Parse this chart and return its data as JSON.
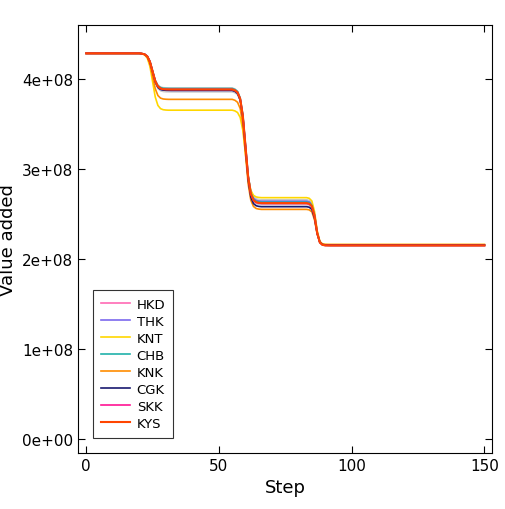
{
  "xlabel": "Step",
  "ylabel": "Value added",
  "xlim": [
    -3,
    153
  ],
  "ylim": [
    -15000000.0,
    460000000.0
  ],
  "yticks": [
    0,
    100000000.0,
    200000000.0,
    300000000.0,
    400000000.0
  ],
  "ytick_labels": [
    "0e+00",
    "1e+08",
    "2e+08",
    "3e+08",
    "4e+08"
  ],
  "xticks": [
    0,
    50,
    100,
    150
  ],
  "series": [
    {
      "name": "HKD",
      "color": "#FF69B4",
      "lw": 1.2,
      "phase1_val": 428000000.0,
      "phase2_val": 388000000.0,
      "phase3_val": 262000000.0,
      "phase4_val": 215000000.0
    },
    {
      "name": "THK",
      "color": "#7B68EE",
      "lw": 1.2,
      "phase1_val": 428000000.0,
      "phase2_val": 387000000.0,
      "phase3_val": 264000000.0,
      "phase4_val": 215500000.0
    },
    {
      "name": "KNT",
      "color": "#FFD700",
      "lw": 1.2,
      "phase1_val": 428000000.0,
      "phase2_val": 365000000.0,
      "phase3_val": 268000000.0,
      "phase4_val": 216000000.0
    },
    {
      "name": "CHB",
      "color": "#20B2AA",
      "lw": 1.2,
      "phase1_val": 428000000.0,
      "phase2_val": 389000000.0,
      "phase3_val": 263000000.0,
      "phase4_val": 215000000.0
    },
    {
      "name": "KNK",
      "color": "#FF8C00",
      "lw": 1.2,
      "phase1_val": 428000000.0,
      "phase2_val": 377000000.0,
      "phase3_val": 255000000.0,
      "phase4_val": 216000000.0
    },
    {
      "name": "CGK",
      "color": "#191970",
      "lw": 1.2,
      "phase1_val": 428000000.0,
      "phase2_val": 387000000.0,
      "phase3_val": 258000000.0,
      "phase4_val": 215500000.0
    },
    {
      "name": "SKK",
      "color": "#FF1493",
      "lw": 1.2,
      "phase1_val": 428000000.0,
      "phase2_val": 388000000.0,
      "phase3_val": 261500000.0,
      "phase4_val": 215000000.0
    },
    {
      "name": "KYS",
      "color": "#FF4500",
      "lw": 1.5,
      "phase1_val": 428000000.0,
      "phase2_val": 388000000.0,
      "phase3_val": 262000000.0,
      "phase4_val": 215000000.0
    }
  ],
  "gray_series": [
    {
      "phase2_val": 386000000.0,
      "phase3_val": 264000000.0,
      "phase4_val": 215500000.0
    },
    {
      "phase2_val": 390000000.0,
      "phase3_val": 261000000.0,
      "phase4_val": 214800000.0
    },
    {
      "phase2_val": 388000000.0,
      "phase3_val": 266000000.0,
      "phase4_val": 215200000.0
    },
    {
      "phase2_val": 387000000.0,
      "phase3_val": 260000000.0,
      "phase4_val": 215000000.0
    },
    {
      "phase2_val": 389000000.0,
      "phase3_val": 263000000.0,
      "phase4_val": 215300000.0
    },
    {
      "phase2_val": 385000000.0,
      "phase3_val": 265000000.0,
      "phase4_val": 214900000.0
    }
  ],
  "bg_color": "#FFFFFF",
  "p1_end": 20,
  "p2_start": 20,
  "p2_end": 30,
  "p3_start": 55,
  "p3_end": 65,
  "p4_start": 83,
  "p4_end": 90,
  "n_steps": 151
}
